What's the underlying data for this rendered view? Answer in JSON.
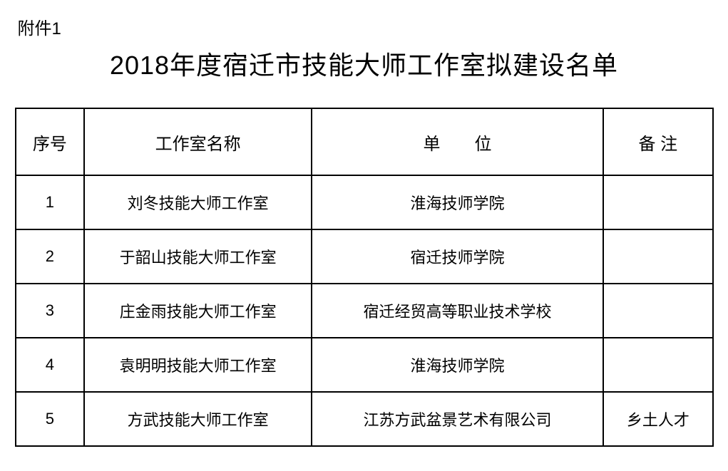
{
  "attachment_label": "附件1",
  "title": "2018年度宿迁市技能大师工作室拟建设名单",
  "headers": {
    "seq": "序号",
    "name": "工作室名称",
    "unit": "单　　位",
    "note": "备 注"
  },
  "rows": [
    {
      "seq": "1",
      "name": "刘冬技能大师工作室",
      "unit": "淮海技师学院",
      "note": ""
    },
    {
      "seq": "2",
      "name": "于韶山技能大师工作室",
      "unit": "宿迁技师学院",
      "note": ""
    },
    {
      "seq": "3",
      "name": "庄金雨技能大师工作室",
      "unit": "宿迁经贸高等职业技术学校",
      "note": ""
    },
    {
      "seq": "4",
      "name": "袁明明技能大师工作室",
      "unit": "淮海技师学院",
      "note": ""
    },
    {
      "seq": "5",
      "name": "方武技能大师工作室",
      "unit": "江苏方武盆景艺术有限公司",
      "note": "乡土人才"
    }
  ],
  "styles": {
    "background_color": "#ffffff",
    "text_color": "#000000",
    "border_color": "#000000",
    "title_fontsize": 36,
    "header_fontsize": 24,
    "cell_fontsize": 22,
    "attachment_fontsize": 24,
    "border_width": 2,
    "header_row_height": 94,
    "body_row_height": 76,
    "column_widths": {
      "seq": 96,
      "name": 316,
      "unit": 406,
      "note": 152
    }
  }
}
